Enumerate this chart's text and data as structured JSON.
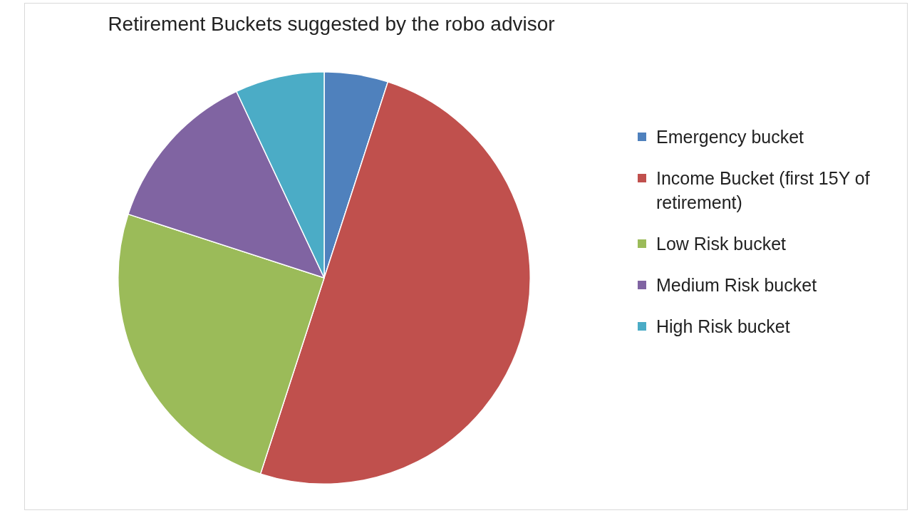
{
  "chart_data": {
    "type": "pie",
    "title": "Retirement Buckets suggested by the robo advisor",
    "categories": [
      "Emergency bucket",
      "Income Bucket (first 15Y of retirement)",
      "Low Risk bucket",
      "Medium Risk bucket",
      "High Risk bucket"
    ],
    "values": [
      5,
      50,
      25,
      13,
      7
    ],
    "colors": [
      "#4f81bd",
      "#c0504d",
      "#9bbb59",
      "#8064a2",
      "#4bacc6"
    ],
    "legend": "right"
  }
}
